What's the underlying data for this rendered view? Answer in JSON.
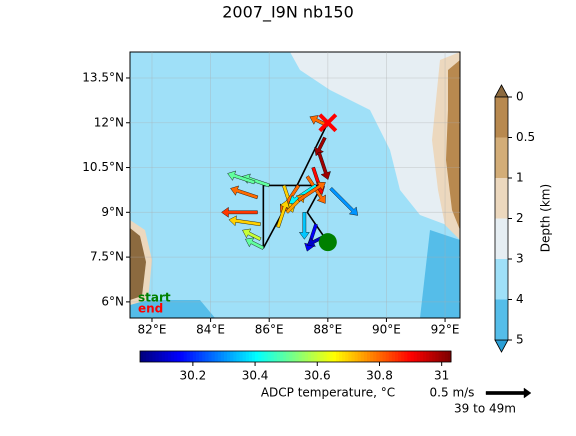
{
  "chart_data": {
    "type": "quiver-map",
    "title": "2007_I9N nb150",
    "xlim": [
      81.25,
      92.51
    ],
    "ylim": [
      5.46,
      14.37
    ],
    "grid": true,
    "xticks": [
      {
        "value": 82,
        "label": "82°E"
      },
      {
        "value": 84,
        "label": "84°E"
      },
      {
        "value": 86,
        "label": "86°E"
      },
      {
        "value": 88,
        "label": "88°E"
      },
      {
        "value": 90,
        "label": "90°E"
      },
      {
        "value": 92,
        "label": "92°E"
      }
    ],
    "yticks": [
      {
        "value": 6,
        "label": "6°N"
      },
      {
        "value": 7.5,
        "label": "7.5°N"
      },
      {
        "value": 9,
        "label": "9°N"
      },
      {
        "value": 10.5,
        "label": "10.5°N"
      },
      {
        "value": 12,
        "label": "12°N"
      },
      {
        "value": 13.5,
        "label": "13.5°N"
      }
    ],
    "track": {
      "lon": [
        88.0,
        87.3,
        87.8,
        85.8,
        85.8,
        87.0,
        88.0
      ],
      "lat": [
        8.0,
        9.0,
        9.9,
        9.9,
        7.8,
        10.0,
        12.0
      ]
    },
    "start_label": "start",
    "start_color": "#008000",
    "end_label": "end",
    "end_color": "#ff0000",
    "arrows": {
      "lon": [
        88.0,
        87.9,
        87.7,
        87.5,
        87.3,
        86.0,
        86.5,
        87.0,
        87.6,
        88.1,
        85.5,
        85.6,
        85.6,
        85.7,
        85.7,
        85.8,
        86.3,
        86.6,
        87.0,
        87.2,
        87.6,
        87.9
      ],
      "lat": [
        11.9,
        11.5,
        11.0,
        10.5,
        10.2,
        9.9,
        9.9,
        9.9,
        9.9,
        9.8,
        10.0,
        9.5,
        9.0,
        8.6,
        8.1,
        7.8,
        8.5,
        9.0,
        9.4,
        9.0,
        8.6,
        8.2
      ],
      "u": [
        -0.2,
        -0.1,
        0.1,
        0.1,
        0.2,
        -0.3,
        0.1,
        -0.2,
        -0.3,
        0.3,
        -0.3,
        -0.3,
        -0.4,
        -0.35,
        -0.2,
        -0.2,
        0.1,
        0.2,
        0.3,
        0.0,
        -0.1,
        -0.2
      ],
      "v": [
        0.1,
        -0.2,
        -0.3,
        -0.3,
        -0.3,
        0.1,
        -0.3,
        -0.3,
        -0.2,
        -0.3,
        0.1,
        0.1,
        0.0,
        0.05,
        0.1,
        0.1,
        0.3,
        0.2,
        0.2,
        -0.3,
        -0.3,
        -0.1
      ],
      "t": [
        30.8,
        31.0,
        31.0,
        30.9,
        30.8,
        30.5,
        30.7,
        30.8,
        30.4,
        30.3,
        30.5,
        30.8,
        30.85,
        30.7,
        30.6,
        30.5,
        30.7,
        30.75,
        30.8,
        30.35,
        30.15,
        30.1
      ]
    },
    "colorbar": {
      "label": "ADCP temperature, °C",
      "lim": [
        30.03,
        31.03
      ],
      "ticks": [
        30.2,
        30.4,
        30.6,
        30.8,
        31.0
      ]
    },
    "depth_colorbar": {
      "label": "Depth (km)",
      "levels": [
        0,
        0.5,
        1,
        2,
        3,
        4,
        5
      ],
      "colors": [
        "#b8894f",
        "#d3ad78",
        "#ecd8be",
        "#e6eef3",
        "#9fe0f8",
        "#55bde9"
      ]
    },
    "key": {
      "speed": {
        "value": 0.5,
        "label": "0.5 m/s"
      },
      "depth_range": "39 to 49m"
    }
  }
}
